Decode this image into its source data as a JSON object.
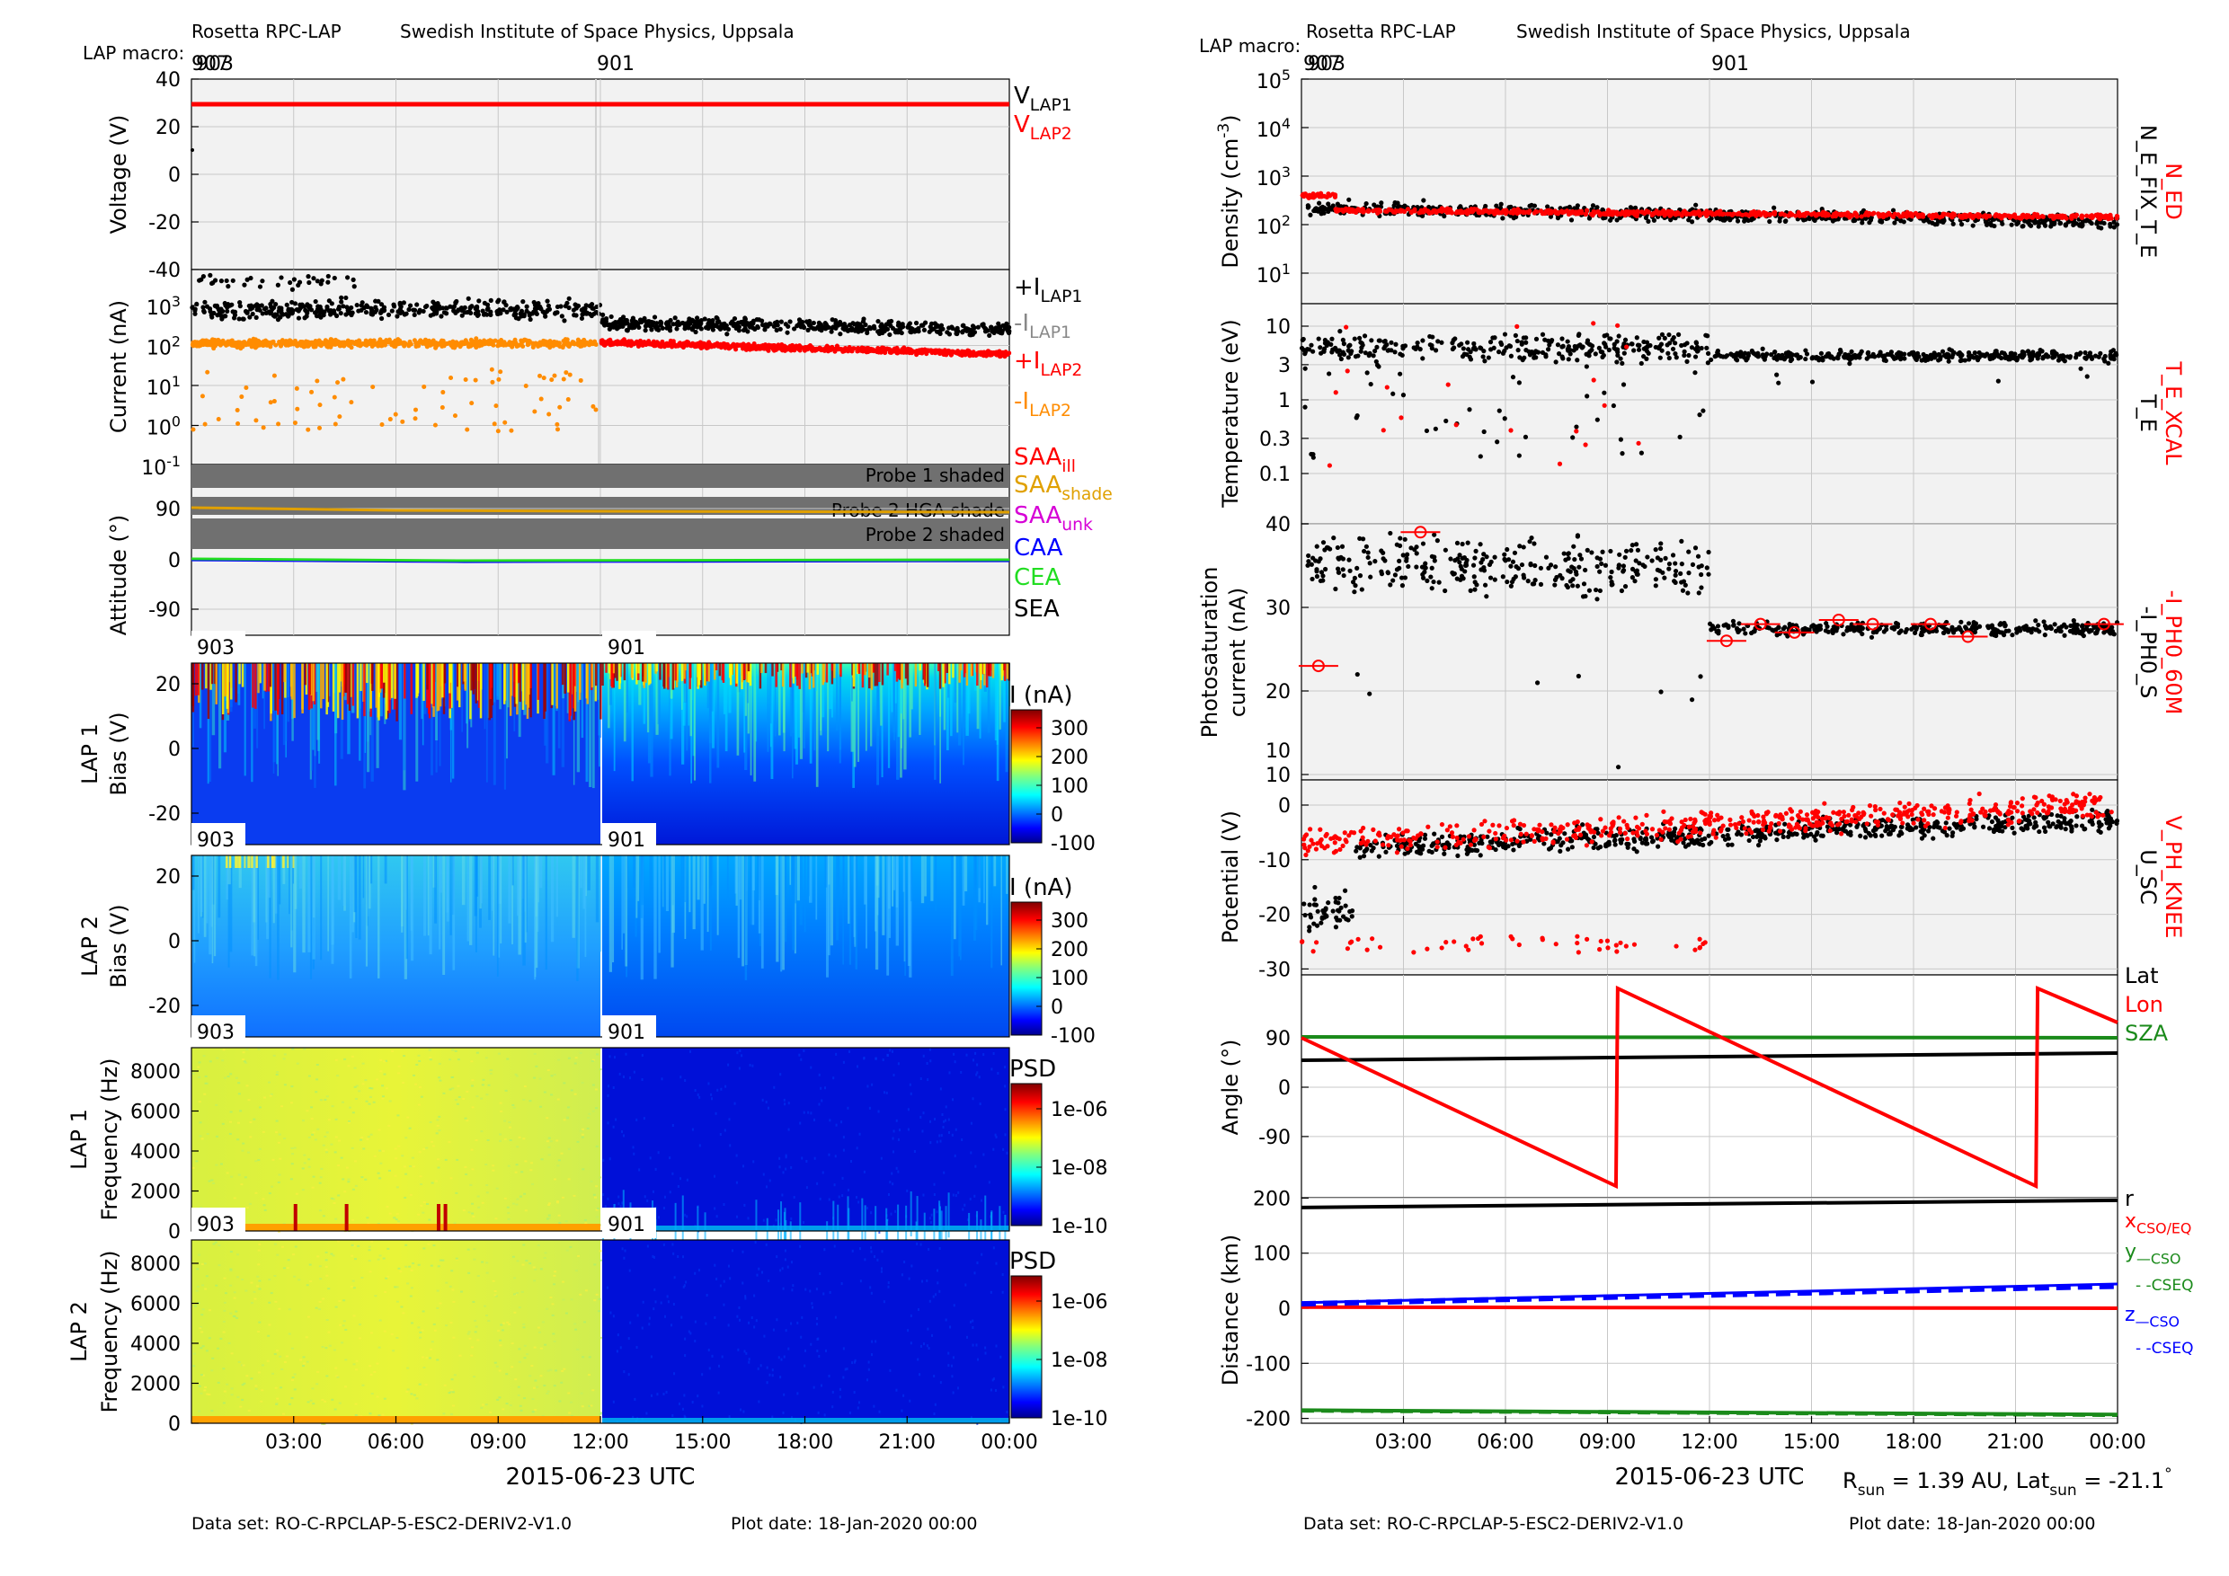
{
  "header": {
    "left_instrument": "Rosetta RPC-LAP",
    "left_institute": "Swedish Institute of Space Physics, Uppsala",
    "right_instrument": "Rosetta RPC-LAP",
    "right_institute": "Swedish Institute of Space Physics, Uppsala",
    "macro_label": "LAP macro:",
    "macro_codes_overlap": "907",
    "macro_codes_overlap_b": "903",
    "macro_main": "901"
  },
  "footer": {
    "left_dataset": "Data set: RO-C-RPCLAP-5-ESC2-DERIV2-V1.0",
    "left_plotdate": "Plot date: 18-Jan-2020 00:00",
    "right_dataset": "Data set: RO-C-RPCLAP-5-ESC2-DERIV2-V1.0",
    "right_plotdate": "Plot date: 18-Jan-2020 00:00"
  },
  "time_axis": {
    "ticks": [
      "03:00",
      "06:00",
      "09:00",
      "12:00",
      "15:00",
      "18:00",
      "21:00",
      "00:00"
    ],
    "date_label_left": "2015-06-23 UTC",
    "date_label_right": "2015-06-23 UTC"
  },
  "sun_info": {
    "r_prefix": "R",
    "r_sub": "sun",
    "r_value": " = 1.39 AU, Lat",
    "lat_sub": "sun",
    "lat_value": " = -21.1",
    "deg": "°"
  },
  "colors": {
    "black": "#000000",
    "red": "#ff0000",
    "orange": "#ff8c00",
    "gray": "#888888",
    "green": "#1a8a1a",
    "blue": "#0000ff",
    "magenta": "#d600d6",
    "gold": "#e0a000",
    "panel_bg": "#f2f2f2",
    "shade": "#707070"
  },
  "chart_data": [
    {
      "id": "voltage",
      "type": "line",
      "ylabel": "Voltage (V)",
      "yticks": [
        "40",
        "20",
        "0",
        "-20",
        "-40"
      ],
      "ylim": [
        -40,
        40
      ],
      "series": [
        {
          "name": "V",
          "sub": "LAP1",
          "color": "#000000",
          "values": [
            10
          ]
        },
        {
          "name": "V",
          "sub": "LAP2",
          "color": "#ff0000",
          "values": [
            30
          ]
        }
      ]
    },
    {
      "id": "current",
      "type": "scatter",
      "ylabel": "Current (nA)",
      "yscale": "log",
      "ytick_base": "10",
      "ytick_exps": [
        "3",
        "2",
        "1",
        "0",
        "-1"
      ],
      "series": [
        {
          "name": "+I",
          "sub": "LAP1",
          "color": "#000000"
        },
        {
          "name": "-I",
          "sub": "LAP1",
          "color": "#888888"
        },
        {
          "name": "+I",
          "sub": "LAP2",
          "color": "#ff0000"
        },
        {
          "name": "-I",
          "sub": "LAP2",
          "color": "#ff8c00"
        }
      ]
    },
    {
      "id": "attitude",
      "type": "line",
      "ylabel": "Attitude (°)",
      "yticks": [
        "90",
        "0",
        "-90"
      ],
      "annotations": [
        "Probe 1 shaded",
        "Probe 2 HGA shade",
        "Probe 2 shaded"
      ],
      "series": [
        {
          "name": "SAA",
          "sub": "ill",
          "color": "#ff0000"
        },
        {
          "name": "SAA",
          "sub": "shade",
          "color": "#e0a000"
        },
        {
          "name": "SAA",
          "sub": "unk",
          "color": "#d600d6"
        },
        {
          "name": "CAA",
          "sub": "",
          "color": "#0000ff"
        },
        {
          "name": "CEA",
          "sub": "",
          "color": "#22dd22"
        },
        {
          "name": "SEA",
          "sub": "",
          "color": "#000000"
        }
      ]
    },
    {
      "id": "lap1_bias",
      "type": "heatmap",
      "ylabel1": "LAP 1",
      "ylabel2": "Bias (V)",
      "yticks": [
        "20",
        "0",
        "-20"
      ],
      "colorbar_label": "I (nA)",
      "colorbar_ticks": [
        "300",
        "200",
        "100",
        "0",
        "-100"
      ],
      "segment_labels": [
        "903",
        "901"
      ]
    },
    {
      "id": "lap2_bias",
      "type": "heatmap",
      "ylabel1": "LAP 2",
      "ylabel2": "Bias (V)",
      "yticks": [
        "20",
        "0",
        "-20"
      ],
      "colorbar_label": "I (nA)",
      "colorbar_ticks": [
        "300",
        "200",
        "100",
        "0",
        "-100"
      ],
      "segment_labels": [
        "903",
        "901"
      ]
    },
    {
      "id": "lap1_freq",
      "type": "heatmap",
      "ylabel1": "LAP 1",
      "ylabel2": "Frequency (Hz)",
      "yticks": [
        "8000",
        "6000",
        "4000",
        "2000",
        "0"
      ],
      "colorbar_label": "PSD",
      "colorbar_ticks": [
        "1e-06",
        "1e-08",
        "1e-10"
      ],
      "segment_labels": [
        "903",
        "901"
      ]
    },
    {
      "id": "lap2_freq",
      "type": "heatmap",
      "ylabel1": "LAP 2",
      "ylabel2": "Frequency (Hz)",
      "yticks": [
        "8000",
        "6000",
        "4000",
        "2000",
        "0"
      ],
      "colorbar_label": "PSD",
      "colorbar_ticks": [
        "1e-06",
        "1e-08",
        "1e-10"
      ],
      "segment_labels": [
        "903",
        "901"
      ]
    },
    {
      "id": "density",
      "type": "scatter",
      "ylabel": "Density (cm",
      "ylabel_sup": "-3",
      "ylabel_end": ")",
      "yscale": "log",
      "ytick_base": "10",
      "ytick_exps": [
        "5",
        "4",
        "3",
        "2",
        "1"
      ],
      "right_labels": [
        {
          "text": "N_ED",
          "color": "#ff0000"
        },
        {
          "text": "N_E_FIX_T_E",
          "color": "#000000"
        }
      ]
    },
    {
      "id": "temperature",
      "type": "scatter",
      "ylabel": "Temperature (eV)",
      "yscale": "log",
      "yticks": [
        "10",
        "3",
        "1",
        "0.3",
        "0.1"
      ],
      "right_labels": [
        {
          "text": "T_E_XCAL",
          "color": "#ff0000"
        },
        {
          "text": "T_E",
          "color": "#000000"
        }
      ]
    },
    {
      "id": "photosat",
      "type": "scatter",
      "ylabel1": "Photosaturation",
      "ylabel2": "current (nA)",
      "yticks": [
        "40",
        "30",
        "20",
        "10"
      ],
      "bottom_tick": "10",
      "right_labels": [
        {
          "text": "-I_PH0_60M",
          "color": "#ff0000"
        },
        {
          "text": "-I_PH0_S",
          "color": "#000000"
        }
      ]
    },
    {
      "id": "potential",
      "type": "scatter",
      "ylabel": "Potential (V)",
      "yticks": [
        "0",
        "-10",
        "-20",
        "-30"
      ],
      "right_labels": [
        {
          "text": "V_PH_KNEE",
          "color": "#ff0000"
        },
        {
          "text": "U_SC",
          "color": "#000000"
        }
      ]
    },
    {
      "id": "angle",
      "type": "line",
      "ylabel": "Angle (°)",
      "yticks": [
        "90",
        "0",
        "-90"
      ],
      "series": [
        {
          "name": "Lat",
          "color": "#000000"
        },
        {
          "name": "Lon",
          "color": "#ff0000"
        },
        {
          "name": "SZA",
          "color": "#1a8a1a"
        }
      ]
    },
    {
      "id": "distance",
      "type": "line",
      "ylabel": "Distance (km)",
      "yticks": [
        "200",
        "100",
        "0",
        "-100",
        "-200"
      ],
      "series": [
        {
          "name": "r",
          "sub": "",
          "color": "#000000"
        },
        {
          "name": "x",
          "sub": "CSO/EQ",
          "color": "#ff0000"
        },
        {
          "name": "y",
          "sub": "—CSO",
          "line2": "- -CSEQ",
          "color": "#1a8a1a"
        },
        {
          "name": "z",
          "sub": "—CSO",
          "line2": "- -CSEQ",
          "color": "#0000ff"
        }
      ]
    }
  ]
}
